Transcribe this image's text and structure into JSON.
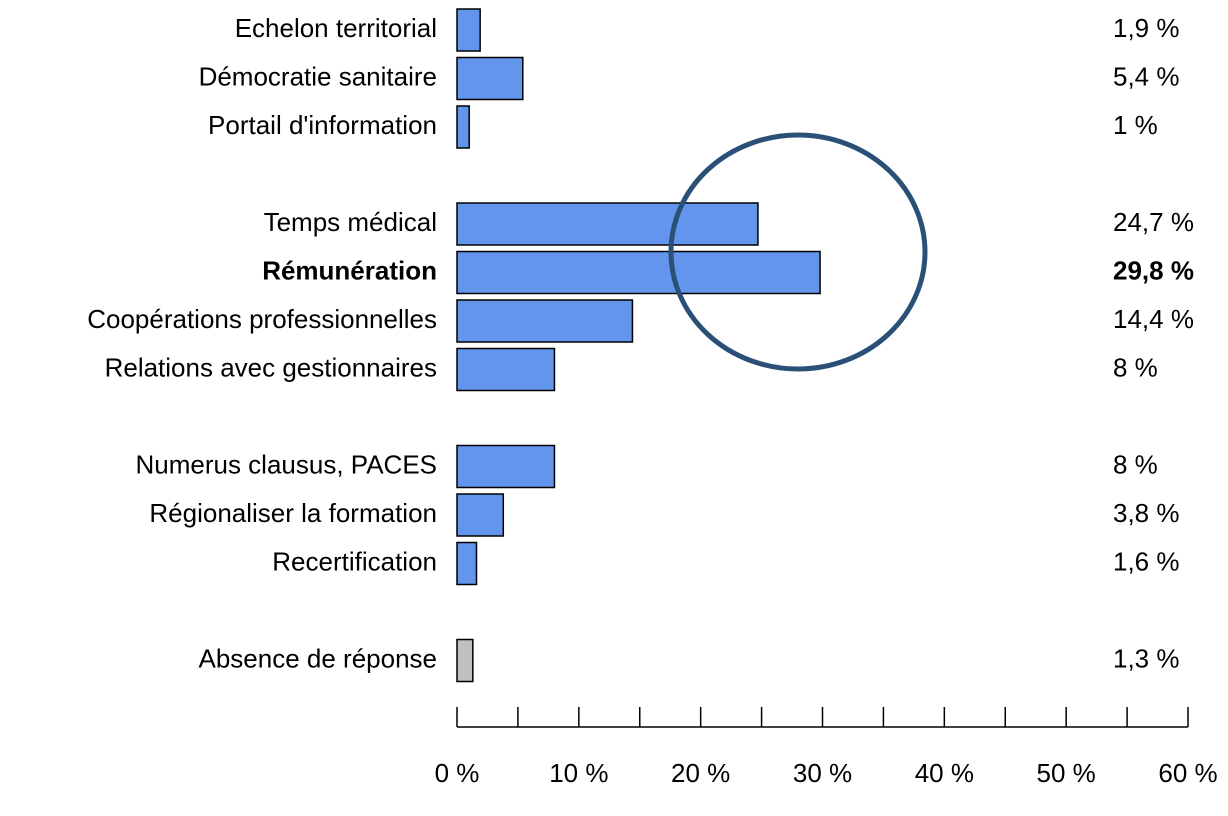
{
  "chart_data": {
    "type": "hbar",
    "categories": [
      "Echelon territorial",
      "Démocratie sanitaire",
      "Portail d'information",
      null,
      "Temps médical",
      "Rémunération",
      "Coopérations professionnelles",
      "Relations avec gestionnaires",
      null,
      "Numerus clausus, PACES",
      "Régionaliser la formation",
      "Recertification",
      null,
      "Absence de réponse"
    ],
    "values": [
      1.9,
      5.4,
      1,
      null,
      24.7,
      29.8,
      14.4,
      8,
      null,
      8,
      3.8,
      1.6,
      null,
      1.3
    ],
    "value_labels": [
      "1,9 %",
      "5,4 %",
      "1 %",
      null,
      "24,7 %",
      "29,8 %",
      "14,4 %",
      "8 %",
      null,
      "8 %",
      "3,8 %",
      "1,6 %",
      null,
      "1,3 %"
    ],
    "colors": [
      "#6495ed",
      "#6495ed",
      "#6495ed",
      null,
      "#6495ed",
      "#6495ed",
      "#6495ed",
      "#6495ed",
      null,
      "#6495ed",
      "#6495ed",
      "#6495ed",
      null,
      "#c0c0c0"
    ],
    "bold_index": 5,
    "xlim": [
      0,
      60
    ],
    "xticks": [
      {
        "value": 0,
        "label": "0 %"
      },
      {
        "value": 10,
        "label": "10 %"
      },
      {
        "value": 20,
        "label": "20 %"
      },
      {
        "value": 30,
        "label": "30 %"
      },
      {
        "value": 40,
        "label": "40 %"
      },
      {
        "value": 50,
        "label": "50 %"
      },
      {
        "value": 60,
        "label": "60 %"
      }
    ],
    "xminorticks": [
      5,
      15,
      25,
      35,
      45,
      55
    ]
  }
}
